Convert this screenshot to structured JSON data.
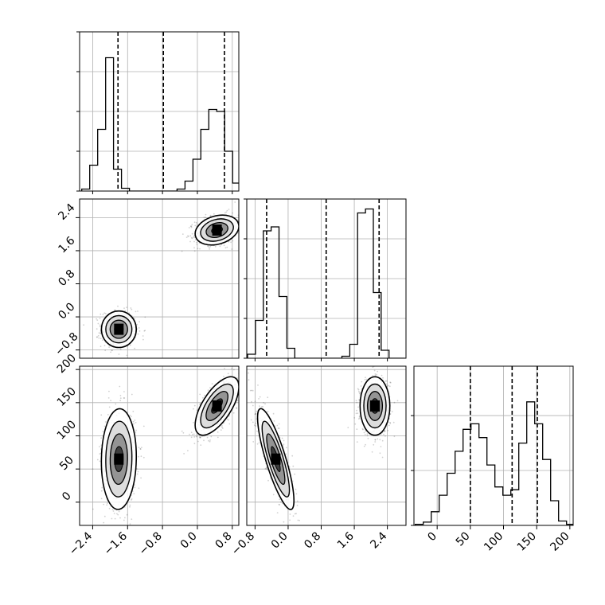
{
  "chart_data": {
    "type": "corner",
    "grid": true,
    "colors": {
      "line": "#000000",
      "grid": "#b0b0b0",
      "density_dark": "#000000",
      "density_light": "#ffffff"
    },
    "parameters": [
      {
        "key": "p1",
        "range": [
          -2.7,
          0.95
        ],
        "ticks": [
          -2.4,
          -1.6,
          -0.8,
          0.0,
          0.8
        ],
        "tick_labels": [
          "−2.4",
          "−1.6",
          "−0.8",
          "0.0",
          "0.8"
        ]
      },
      {
        "key": "p2",
        "range": [
          -1.0,
          2.85
        ],
        "ticks": [
          -0.8,
          0.0,
          0.8,
          1.6,
          2.4
        ],
        "tick_labels": [
          "−0.8",
          "0.0",
          "0.8",
          "1.6",
          "2.4"
        ]
      },
      {
        "key": "p3",
        "range": [
          -35,
          205
        ],
        "ticks": [
          0,
          50,
          100,
          150,
          200
        ],
        "tick_labels": [
          "0",
          "50",
          "100",
          "150",
          "200"
        ]
      }
    ],
    "diagonal": [
      {
        "param": 0,
        "bin_edges": [
          -2.65,
          -2.468,
          -2.286,
          -2.104,
          -1.922,
          -1.74,
          -1.558,
          -1.376,
          -1.194,
          -1.012,
          -0.83,
          -0.648,
          -0.466,
          -0.284,
          -0.102,
          0.08,
          0.262,
          0.444,
          0.626,
          0.808,
          0.99
        ],
        "counts": [
          0.05,
          0.65,
          1.55,
          3.35,
          0.55,
          0.07,
          0,
          0,
          0,
          0,
          0,
          0,
          0.05,
          0.25,
          0.8,
          1.55,
          2.05,
          2.0,
          1.0,
          0.2
        ],
        "ymax": 4.0,
        "quantiles": [
          -1.82,
          -0.78,
          0.62
        ]
      },
      {
        "param": 1,
        "bin_edges": [
          -0.98,
          -0.79,
          -0.6,
          -0.41,
          -0.22,
          -0.03,
          0.16,
          0.35,
          0.54,
          0.73,
          0.92,
          1.11,
          1.3,
          1.49,
          1.68,
          1.87,
          2.06,
          2.25,
          2.44,
          2.63,
          2.82
        ],
        "counts": [
          0.1,
          0.95,
          3.2,
          3.3,
          1.55,
          0.25,
          0,
          0,
          0,
          0,
          0,
          0,
          0.05,
          0.35,
          3.65,
          3.75,
          1.65,
          0.2,
          0,
          0
        ],
        "ymax": 4.0,
        "quantiles": [
          -0.52,
          0.92,
          2.2
        ]
      },
      {
        "param": 2,
        "bin_edges": [
          -33,
          -21,
          -9,
          3,
          15,
          27,
          39,
          51,
          63,
          75,
          87,
          99,
          111,
          123,
          135,
          147,
          159,
          171,
          183,
          195,
          207
        ],
        "counts": [
          0.02,
          0.06,
          0.25,
          0.55,
          0.95,
          1.35,
          1.75,
          1.85,
          1.6,
          1.1,
          0.7,
          0.55,
          0.65,
          1.5,
          2.25,
          1.85,
          1.2,
          0.45,
          0.08,
          0.02
        ],
        "ymax": 2.9,
        "quantiles": [
          50,
          113,
          151
        ]
      }
    ],
    "clusters": [
      {
        "center": [
          -1.8,
          -0.3,
          65
        ],
        "sd": [
          0.2,
          0.22,
          38
        ],
        "rho": {
          "01": 0.0,
          "02": 0.05,
          "12": -0.82
        },
        "weight": 0.5
      },
      {
        "center": [
          0.45,
          2.1,
          145
        ],
        "sd": [
          0.25,
          0.18,
          22
        ],
        "rho": {
          "01": 0.25,
          "02": 0.65,
          "12": 0.0
        },
        "weight": 0.5
      }
    ]
  }
}
